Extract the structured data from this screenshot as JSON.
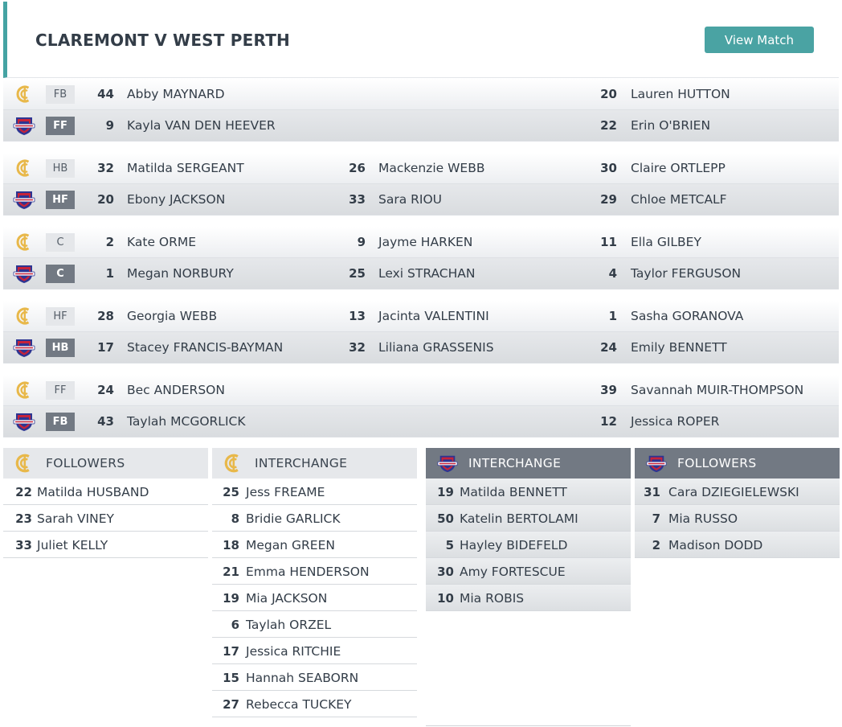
{
  "header": {
    "title": "CLAREMONT V WEST PERTH",
    "view_button": "View Match"
  },
  "teams": {
    "claremont": {
      "icon": "claremont-logo-icon",
      "color": "#e8b84a"
    },
    "west_perth": {
      "icon": "west-perth-falcons-logo-icon",
      "color": "#2d3592"
    }
  },
  "lines": [
    {
      "claremont": {
        "pos": "FB",
        "players": [
          {
            "num": "44",
            "name": "Abby MAYNARD"
          },
          {
            "num": "",
            "name": ""
          },
          {
            "num": "20",
            "name": "Lauren HUTTON"
          }
        ]
      },
      "west_perth": {
        "pos": "FF",
        "players": [
          {
            "num": "9",
            "name": "Kayla VAN DEN HEEVER"
          },
          {
            "num": "",
            "name": ""
          },
          {
            "num": "22",
            "name": "Erin O'BRIEN"
          }
        ]
      }
    },
    {
      "claremont": {
        "pos": "HB",
        "players": [
          {
            "num": "32",
            "name": "Matilda SERGEANT"
          },
          {
            "num": "26",
            "name": "Mackenzie WEBB"
          },
          {
            "num": "30",
            "name": "Claire ORTLEPP"
          }
        ]
      },
      "west_perth": {
        "pos": "HF",
        "players": [
          {
            "num": "20",
            "name": "Ebony JACKSON"
          },
          {
            "num": "33",
            "name": "Sara RIOU"
          },
          {
            "num": "29",
            "name": "Chloe METCALF"
          }
        ]
      }
    },
    {
      "claremont": {
        "pos": "C",
        "players": [
          {
            "num": "2",
            "name": "Kate ORME"
          },
          {
            "num": "9",
            "name": "Jayme HARKEN"
          },
          {
            "num": "11",
            "name": "Ella GILBEY"
          }
        ]
      },
      "west_perth": {
        "pos": "C",
        "players": [
          {
            "num": "1",
            "name": "Megan NORBURY"
          },
          {
            "num": "25",
            "name": "Lexi STRACHAN"
          },
          {
            "num": "4",
            "name": "Taylor FERGUSON"
          }
        ]
      }
    },
    {
      "claremont": {
        "pos": "HF",
        "players": [
          {
            "num": "28",
            "name": "Georgia WEBB"
          },
          {
            "num": "13",
            "name": "Jacinta VALENTINI"
          },
          {
            "num": "1",
            "name": "Sasha GORANOVA"
          }
        ]
      },
      "west_perth": {
        "pos": "HB",
        "players": [
          {
            "num": "17",
            "name": "Stacey FRANCIS-BAYMAN"
          },
          {
            "num": "32",
            "name": "Liliana GRASSENIS"
          },
          {
            "num": "24",
            "name": "Emily BENNETT"
          }
        ]
      }
    },
    {
      "claremont": {
        "pos": "FF",
        "players": [
          {
            "num": "24",
            "name": "Bec ANDERSON"
          },
          {
            "num": "",
            "name": ""
          },
          {
            "num": "39",
            "name": "Savannah MUIR-THOMPSON"
          }
        ]
      },
      "west_perth": {
        "pos": "FB",
        "players": [
          {
            "num": "43",
            "name": "Taylah MCGORLICK"
          },
          {
            "num": "",
            "name": ""
          },
          {
            "num": "12",
            "name": "Jessica ROPER"
          }
        ]
      }
    }
  ],
  "panels": {
    "claremont_followers": {
      "title": "FOLLOWERS",
      "players": [
        {
          "num": "22",
          "name": "Matilda HUSBAND"
        },
        {
          "num": "23",
          "name": "Sarah VINEY"
        },
        {
          "num": "33",
          "name": "Juliet KELLY"
        }
      ]
    },
    "claremont_interchange": {
      "title": "INTERCHANGE",
      "players": [
        {
          "num": "25",
          "name": "Jess FREAME"
        },
        {
          "num": "8",
          "name": "Bridie GARLICK"
        },
        {
          "num": "18",
          "name": "Megan GREEN"
        },
        {
          "num": "21",
          "name": "Emma HENDERSON"
        },
        {
          "num": "19",
          "name": "Mia JACKSON"
        },
        {
          "num": "6",
          "name": "Taylah ORZEL"
        },
        {
          "num": "17",
          "name": "Jessica RITCHIE"
        },
        {
          "num": "15",
          "name": "Hannah SEABORN"
        },
        {
          "num": "27",
          "name": "Rebecca TUCKEY"
        }
      ]
    },
    "west_perth_interchange": {
      "title": "INTERCHANGE",
      "players": [
        {
          "num": "19",
          "name": "Matilda BENNETT"
        },
        {
          "num": "50",
          "name": "Katelin BERTOLAMI"
        },
        {
          "num": "5",
          "name": "Hayley BIDEFELD"
        },
        {
          "num": "30",
          "name": "Amy FORTESCUE"
        },
        {
          "num": "10",
          "name": "Mia ROBIS"
        }
      ]
    },
    "west_perth_followers": {
      "title": "FOLLOWERS",
      "players": [
        {
          "num": "31",
          "name": "Cara DZIEGIELEWSKI"
        },
        {
          "num": "7",
          "name": "Mia RUSSO"
        },
        {
          "num": "2",
          "name": "Madison DODD"
        }
      ]
    }
  }
}
